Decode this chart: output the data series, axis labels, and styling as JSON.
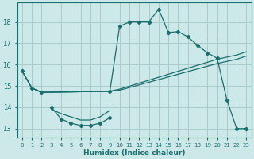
{
  "xlabel": "Humidex (Indice chaleur)",
  "bg_color": "#cce8e8",
  "grid_color": "#aacccc",
  "line_color": "#1a6e6e",
  "xlim": [
    -0.5,
    23.5
  ],
  "ylim": [
    12.6,
    18.9
  ],
  "xticks": [
    0,
    1,
    2,
    3,
    4,
    5,
    6,
    7,
    8,
    9,
    10,
    11,
    12,
    13,
    14,
    15,
    16,
    17,
    18,
    19,
    20,
    21,
    22,
    23
  ],
  "yticks": [
    13,
    14,
    15,
    16,
    17,
    18
  ],
  "curve1_x": [
    0,
    1,
    2,
    9,
    10,
    11,
    12,
    13,
    14,
    15,
    16,
    17,
    18,
    19,
    20,
    21,
    22,
    23
  ],
  "curve1_y": [
    15.7,
    14.9,
    14.7,
    14.75,
    17.8,
    18.0,
    18.0,
    18.0,
    18.6,
    17.5,
    17.55,
    17.3,
    16.9,
    16.55,
    16.3,
    14.35,
    13.0,
    13.0
  ],
  "curve2_x": [
    3,
    4,
    5,
    6,
    7,
    8,
    9
  ],
  "curve2_y": [
    14.0,
    13.45,
    13.25,
    13.15,
    13.15,
    13.25,
    13.5
  ],
  "curve3_x": [
    3,
    4,
    5,
    6,
    7,
    8,
    9
  ],
  "curve3_y": [
    13.9,
    13.7,
    13.55,
    13.4,
    13.4,
    13.55,
    13.85
  ],
  "line1_x": [
    0,
    1,
    2,
    9,
    10,
    20,
    21,
    22,
    23
  ],
  "line1_y": [
    15.7,
    14.9,
    14.7,
    14.75,
    14.85,
    16.25,
    16.35,
    16.45,
    16.6
  ],
  "line2_x": [
    0,
    1,
    2,
    9,
    10,
    20,
    21,
    22,
    23
  ],
  "line2_y": [
    15.7,
    14.9,
    14.7,
    14.75,
    14.8,
    16.05,
    16.15,
    16.25,
    16.4
  ]
}
